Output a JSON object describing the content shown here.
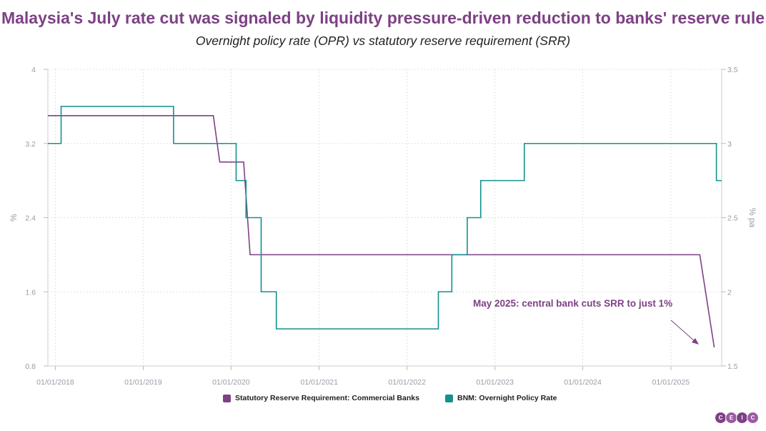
{
  "colors": {
    "srr": "#7d4185",
    "opr": "#14918e",
    "title": "#7d4185",
    "grid": "#d8d8d8",
    "tick": "#9a9aa8"
  },
  "title": "Malaysia's July rate cut was signaled by liquidity pressure-driven reduction to banks' reserve rule",
  "subtitle": "Overnight policy rate (OPR) vs statutory reserve requirement (SRR)",
  "chart_data": {
    "type": "line",
    "title": "Malaysia's July rate cut was signaled by liquidity pressure-driven reduction to banks' reserve rule",
    "subtitle": "Overnight policy rate (OPR) vs statutory reserve requirement (SRR)",
    "xlim": [
      "2017-12-01",
      "2025-07-31"
    ],
    "x_ticks": [
      "01/01/2018",
      "01/01/2019",
      "01/01/2020",
      "01/01/2021",
      "01/01/2022",
      "01/01/2023",
      "01/01/2024",
      "01/01/2025"
    ],
    "left_axis": {
      "label": "%",
      "ylim": [
        0.8,
        4
      ],
      "ticks": [
        "0.8",
        "1.6",
        "2.4",
        "3.2",
        "4"
      ]
    },
    "right_axis": {
      "label": "% pa",
      "ylim": [
        1.5,
        3.5
      ],
      "ticks": [
        "1.5",
        "2",
        "2.5",
        "3",
        "3.5"
      ]
    },
    "grid": true,
    "legend_position": "bottom",
    "series": [
      {
        "name": "Statutory Reserve Requirement: Commercial Banks",
        "axis": "left",
        "step": true,
        "points": [
          [
            "2017-12-01",
            3.5
          ],
          [
            "2019-11-15",
            3.0
          ],
          [
            "2020-03-20",
            2.0
          ],
          [
            "2025-05-01",
            2.0
          ],
          [
            "2025-06-30",
            1.0
          ]
        ]
      },
      {
        "name": "BNM: Overnight Policy Rate",
        "axis": "right",
        "step": true,
        "points": [
          [
            "2017-12-01",
            3.0
          ],
          [
            "2018-01-25",
            3.25
          ],
          [
            "2019-05-07",
            3.0
          ],
          [
            "2020-01-22",
            2.75
          ],
          [
            "2020-03-03",
            2.5
          ],
          [
            "2020-05-05",
            2.0
          ],
          [
            "2020-07-07",
            1.75
          ],
          [
            "2022-05-11",
            2.0
          ],
          [
            "2022-07-06",
            2.25
          ],
          [
            "2022-09-08",
            2.5
          ],
          [
            "2022-11-03",
            2.75
          ],
          [
            "2023-05-03",
            3.0
          ],
          [
            "2025-07-09",
            2.75
          ],
          [
            "2025-07-31",
            2.75
          ]
        ]
      }
    ],
    "annotation": {
      "text": "May 2025: central bank cuts SRR to just 1%"
    }
  },
  "logo": {
    "letters": [
      "C",
      "E",
      "I",
      "C"
    ]
  }
}
